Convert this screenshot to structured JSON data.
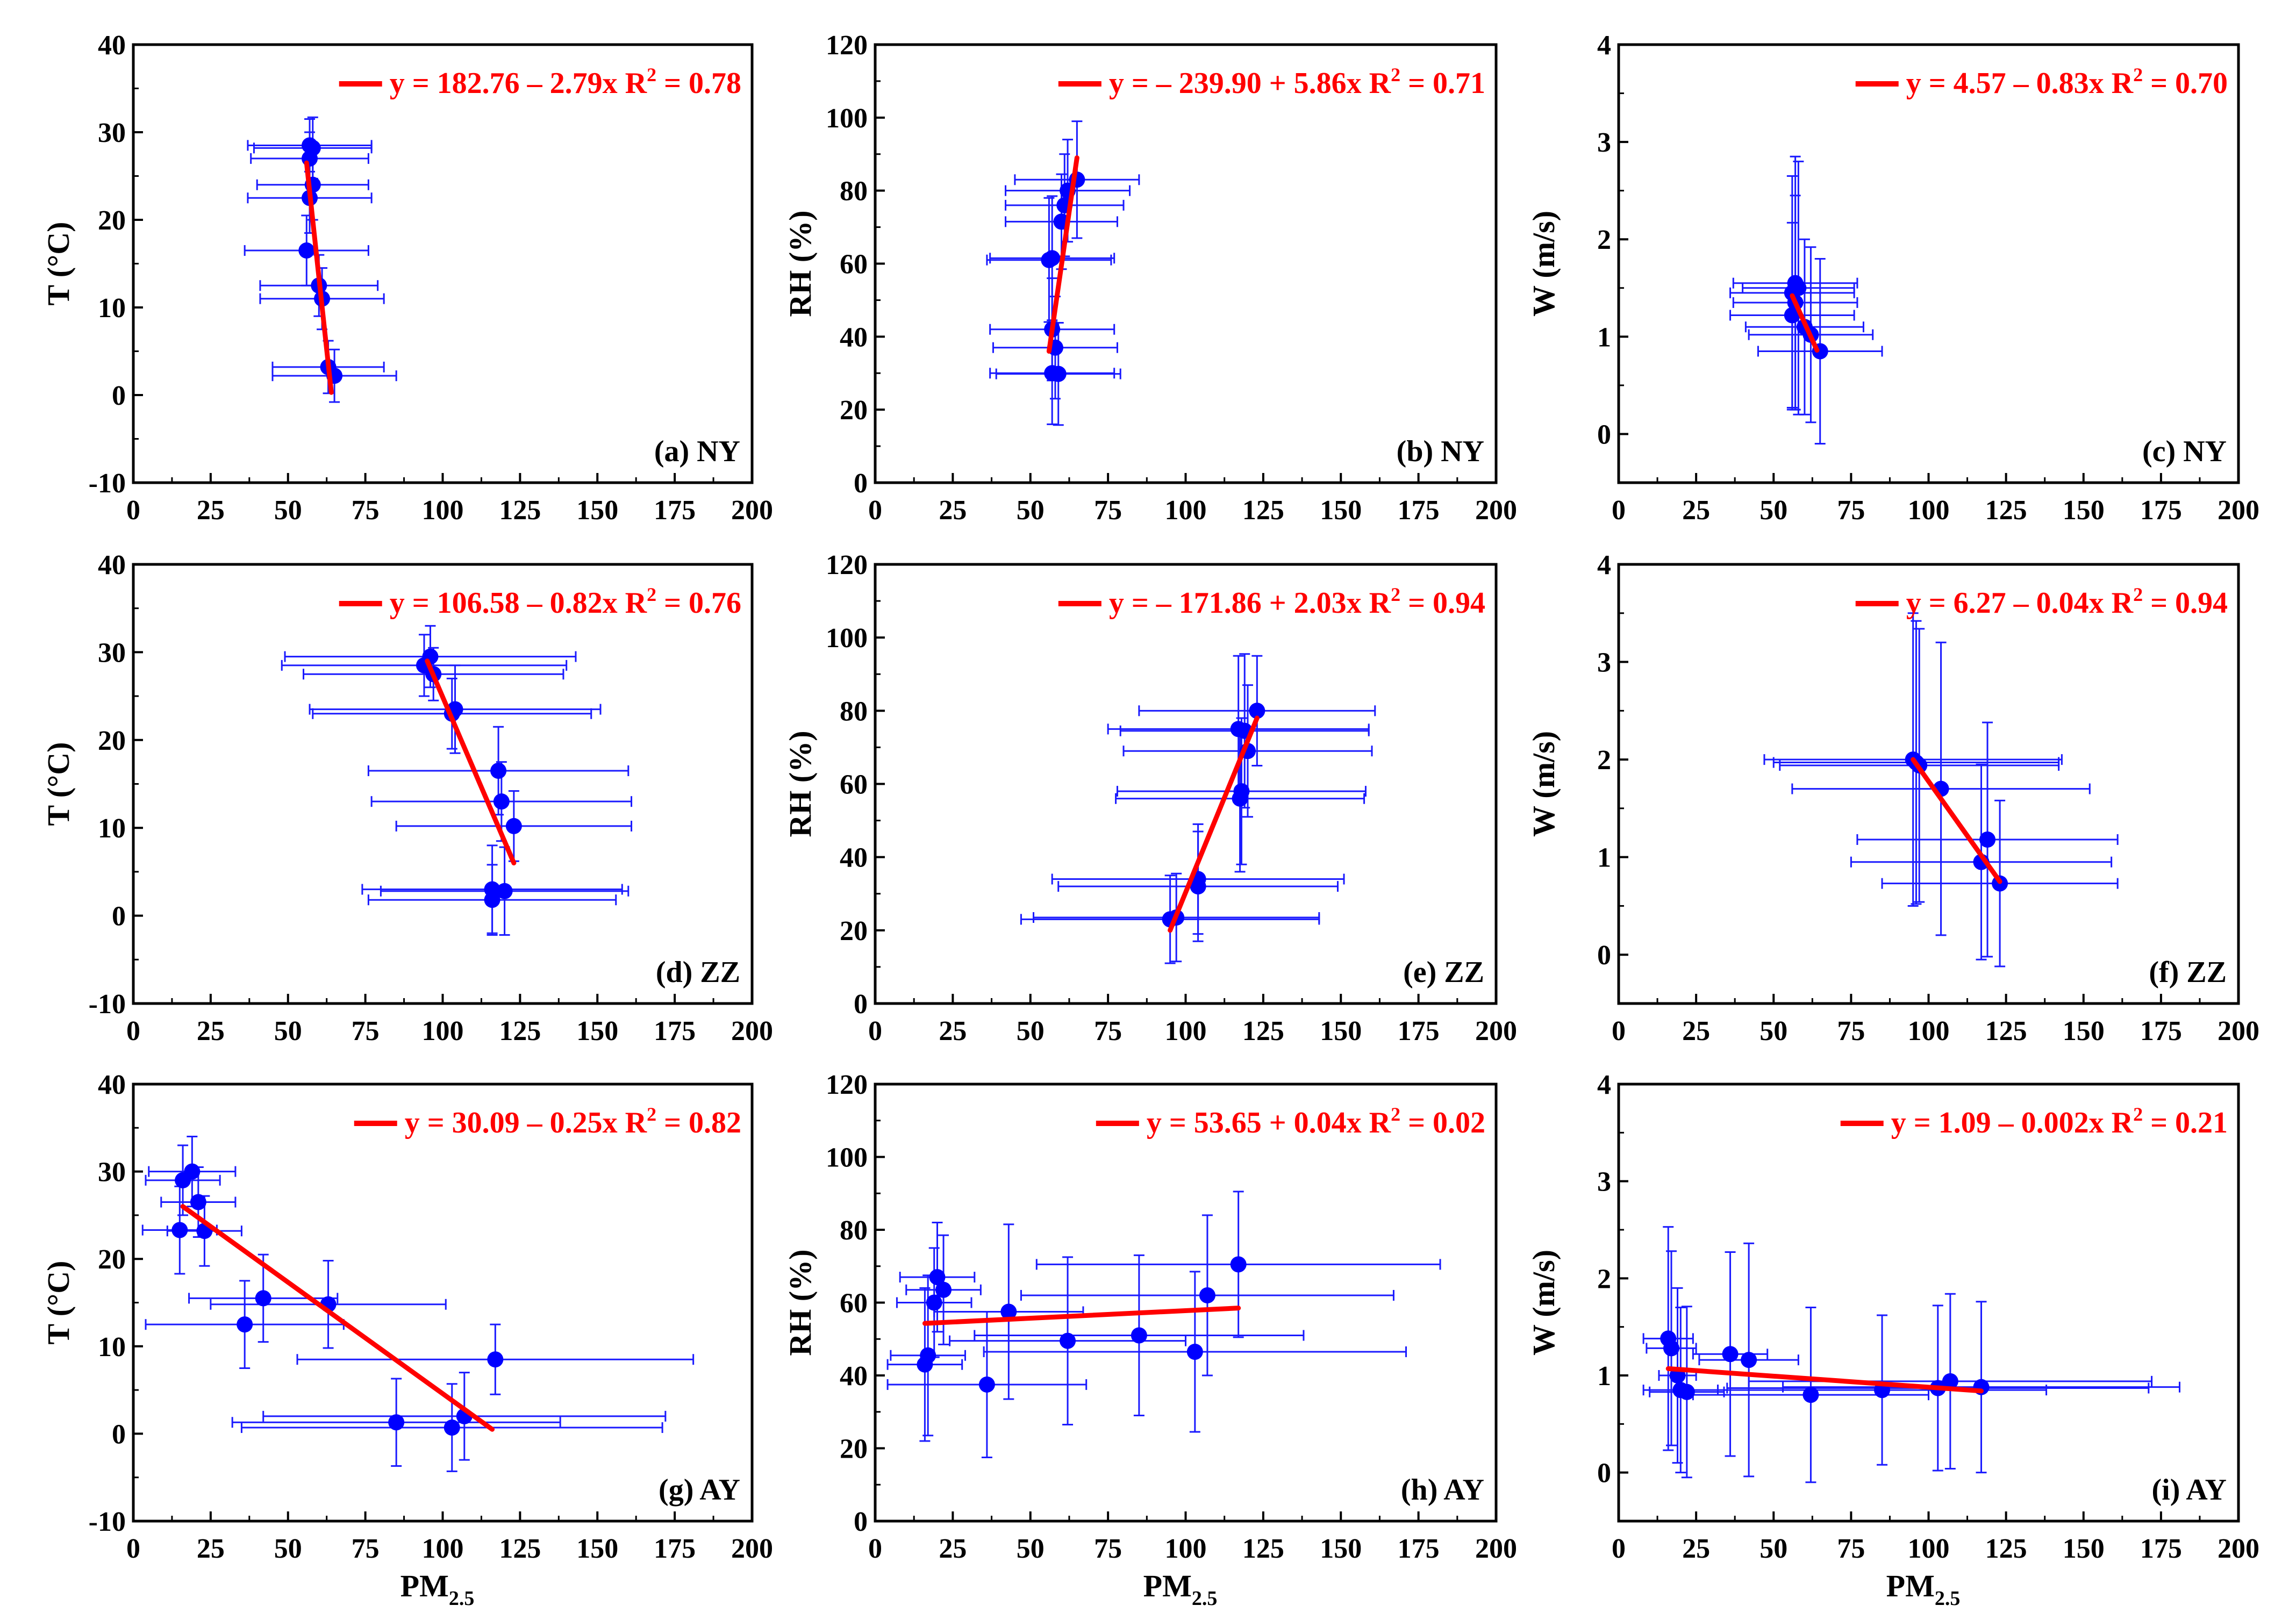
{
  "chart_data": [
    {
      "id": "a",
      "type": "scatter",
      "panel_label": "(a) NY",
      "ylabel": "T (°C)",
      "xlabel": "",
      "xlim": [
        0,
        200
      ],
      "ylim": [
        -10,
        40
      ],
      "xticks": [
        0,
        25,
        50,
        75,
        100,
        125,
        150,
        175,
        200
      ],
      "yticks": [
        -10,
        0,
        10,
        20,
        30,
        40
      ],
      "equation": "y = 182.76 – 2.79x",
      "r2_prefix": "R",
      "r2_value": " = 0.78",
      "fit": {
        "x": [
          56,
          64
        ],
        "y": [
          26.5,
          0.3
        ]
      },
      "points": [
        [
          57,
          28.5,
          20,
          3
        ],
        [
          58,
          28.2,
          19,
          3.5
        ],
        [
          57,
          27,
          19,
          3
        ],
        [
          58,
          24,
          18,
          4
        ],
        [
          57,
          22.5,
          20,
          4
        ],
        [
          56,
          16.5,
          20,
          4
        ],
        [
          60,
          12.5,
          19,
          3.5
        ],
        [
          61,
          11,
          20,
          3.5
        ],
        [
          63,
          3.2,
          18,
          3
        ],
        [
          65,
          2.2,
          20,
          3
        ]
      ]
    },
    {
      "id": "b",
      "type": "scatter",
      "panel_label": "(b) NY",
      "ylabel": "RH (%)",
      "xlabel": "",
      "xlim": [
        0,
        200
      ],
      "ylim": [
        0,
        120
      ],
      "xticks": [
        0,
        25,
        50,
        75,
        100,
        125,
        150,
        175,
        200
      ],
      "yticks": [
        0,
        20,
        40,
        60,
        80,
        100,
        120
      ],
      "equation": "y = – 239.90 + 5.86x",
      "r2_prefix": "R",
      "r2_value": " = 0.71",
      "fit": {
        "x": [
          56,
          65
        ],
        "y": [
          36,
          89
        ]
      },
      "points": [
        [
          65,
          83,
          20,
          16
        ],
        [
          62,
          80,
          20,
          14
        ],
        [
          61,
          76,
          19,
          14
        ],
        [
          60,
          71.5,
          18,
          13
        ],
        [
          57,
          61.5,
          20,
          17
        ],
        [
          56,
          61,
          20,
          17
        ],
        [
          57,
          42,
          20,
          14
        ],
        [
          58,
          37,
          20,
          14
        ],
        [
          57,
          30,
          20,
          14
        ],
        [
          59,
          29.8,
          20,
          14
        ]
      ]
    },
    {
      "id": "c",
      "type": "scatter",
      "panel_label": "(c) NY",
      "ylabel": "W (m/s)",
      "xlabel": "",
      "xlim": [
        0,
        200
      ],
      "ylim": [
        -0.5,
        4
      ],
      "xticks": [
        0,
        25,
        50,
        75,
        100,
        125,
        150,
        175,
        200
      ],
      "yticks": [
        0,
        1,
        2,
        3,
        4
      ],
      "equation": "y = 4.57 – 0.83x",
      "r2_prefix": "R",
      "r2_value": " = 0.70",
      "fit": {
        "x": [
          56,
          64
        ],
        "y": [
          1.42,
          0.86
        ]
      },
      "points": [
        [
          57,
          1.55,
          20,
          1.3
        ],
        [
          58,
          1.5,
          18,
          1.3
        ],
        [
          56,
          1.45,
          20,
          1.2
        ],
        [
          57,
          1.35,
          20,
          1.1
        ],
        [
          56,
          1.22,
          20,
          0.95
        ],
        [
          60,
          1.1,
          19,
          0.9
        ],
        [
          62,
          1.02,
          20,
          0.9
        ],
        [
          65,
          0.85,
          20,
          0.95
        ]
      ]
    },
    {
      "id": "d",
      "type": "scatter",
      "panel_label": "(d) ZZ",
      "ylabel": "T (°C)",
      "xlabel": "",
      "xlim": [
        0,
        200
      ],
      "ylim": [
        -10,
        40
      ],
      "xticks": [
        0,
        25,
        50,
        75,
        100,
        125,
        150,
        175,
        200
      ],
      "yticks": [
        -10,
        0,
        10,
        20,
        30,
        40
      ],
      "equation": "y = 106.58 – 0.82x",
      "r2_prefix": "R",
      "r2_value": " = 0.76",
      "fit": {
        "x": [
          95,
          123
        ],
        "y": [
          29,
          6
        ]
      },
      "points": [
        [
          96,
          29.5,
          47,
          3.5
        ],
        [
          94,
          28.5,
          46,
          3.5
        ],
        [
          97,
          27.5,
          42,
          3
        ],
        [
          104,
          23.5,
          47,
          5
        ],
        [
          103,
          23,
          45,
          4
        ],
        [
          118,
          16.5,
          42,
          5
        ],
        [
          119,
          13,
          42,
          4.5
        ],
        [
          123,
          10.2,
          38,
          4
        ],
        [
          116,
          3,
          42,
          5
        ],
        [
          120,
          2.8,
          40,
          5
        ],
        [
          116,
          1.8,
          40,
          4
        ]
      ]
    },
    {
      "id": "e",
      "type": "scatter",
      "panel_label": "(e) ZZ",
      "ylabel": "RH (%)",
      "xlabel": "",
      "xlim": [
        0,
        200
      ],
      "ylim": [
        0,
        120
      ],
      "xticks": [
        0,
        25,
        50,
        75,
        100,
        125,
        150,
        175,
        200
      ],
      "yticks": [
        0,
        20,
        40,
        60,
        80,
        100,
        120
      ],
      "equation": "y = – 171.86 + 2.03x",
      "r2_prefix": "R",
      "r2_value": " = 0.94",
      "fit": {
        "x": [
          95,
          123
        ],
        "y": [
          20,
          78
        ]
      },
      "points": [
        [
          123,
          80,
          38,
          15
        ],
        [
          117,
          75,
          42,
          20
        ],
        [
          119,
          74.5,
          40,
          21
        ],
        [
          120,
          69,
          40,
          18
        ],
        [
          118,
          58,
          40,
          20
        ],
        [
          117.5,
          56,
          40,
          20
        ],
        [
          104,
          34,
          47,
          15
        ],
        [
          104,
          32,
          45,
          15
        ],
        [
          97,
          23.5,
          46,
          12
        ],
        [
          95,
          23,
          48,
          12
        ]
      ]
    },
    {
      "id": "f",
      "type": "scatter",
      "panel_label": "(f) ZZ",
      "ylabel": "W (m/s)",
      "xlabel": "",
      "xlim": [
        0,
        200
      ],
      "ylim": [
        -0.5,
        4
      ],
      "xticks": [
        0,
        25,
        50,
        75,
        100,
        125,
        150,
        175,
        200
      ],
      "yticks": [
        0,
        1,
        2,
        3,
        4
      ],
      "equation": "y = 6.27 – 0.04x",
      "r2_prefix": "R",
      "r2_value": " = 0.94",
      "fit": {
        "x": [
          95,
          123
        ],
        "y": [
          2.0,
          0.75
        ]
      },
      "points": [
        [
          95,
          2.0,
          48,
          1.5
        ],
        [
          96,
          1.97,
          46,
          1.45
        ],
        [
          97,
          1.94,
          45,
          1.4
        ],
        [
          104,
          1.7,
          48,
          1.5
        ],
        [
          119,
          1.18,
          42,
          1.2
        ],
        [
          117,
          0.95,
          42,
          1.0
        ],
        [
          123,
          0.73,
          38,
          0.85
        ]
      ]
    },
    {
      "id": "g",
      "type": "scatter",
      "panel_label": "(g) AY",
      "ylabel": "T (°C)",
      "xlabel": "PM",
      "xlabel_sub": "2.5",
      "xlim": [
        0,
        200
      ],
      "ylim": [
        -10,
        40
      ],
      "xticks": [
        0,
        25,
        50,
        75,
        100,
        125,
        150,
        175,
        200
      ],
      "yticks": [
        -10,
        0,
        10,
        20,
        30,
        40
      ],
      "equation": "y = 30.09 – 0.25x",
      "r2_prefix": "R",
      "r2_value": " = 0.82",
      "fit": {
        "x": [
          16,
          116
        ],
        "y": [
          26,
          0.5
        ]
      },
      "points": [
        [
          19,
          30,
          14,
          4
        ],
        [
          16,
          29,
          12,
          4
        ],
        [
          21,
          26.5,
          12,
          4
        ],
        [
          23,
          23.2,
          12,
          4
        ],
        [
          15,
          23.3,
          12,
          5
        ],
        [
          42,
          15.5,
          24,
          5
        ],
        [
          63,
          14.8,
          38,
          5
        ],
        [
          36,
          12.5,
          32,
          5
        ],
        [
          117,
          8.5,
          64,
          4
        ],
        [
          85,
          1.3,
          53,
          5
        ],
        [
          107,
          2,
          65,
          5
        ],
        [
          103,
          0.7,
          68,
          5
        ]
      ]
    },
    {
      "id": "h",
      "type": "scatter",
      "panel_label": "(h) AY",
      "ylabel": "RH (%)",
      "xlabel": "PM",
      "xlabel_sub": "2.5",
      "xlim": [
        0,
        200
      ],
      "ylim": [
        0,
        120
      ],
      "xticks": [
        0,
        25,
        50,
        75,
        100,
        125,
        150,
        175,
        200
      ],
      "yticks": [
        0,
        20,
        40,
        60,
        80,
        100,
        120
      ],
      "equation": "y = 53.65 + 0.04x",
      "r2_prefix": "R",
      "r2_value": " = 0.02",
      "fit": {
        "x": [
          16,
          117
        ],
        "y": [
          54.3,
          58.5
        ]
      },
      "points": [
        [
          117,
          70.5,
          65,
          20
        ],
        [
          20,
          67,
          12,
          15
        ],
        [
          22,
          63.5,
          12,
          15
        ],
        [
          19,
          60,
          12,
          15
        ],
        [
          107,
          62,
          60,
          22
        ],
        [
          43,
          57.5,
          24,
          24
        ],
        [
          62,
          49.5,
          38,
          23
        ],
        [
          85,
          51,
          53,
          22
        ],
        [
          103,
          46.5,
          68,
          22
        ],
        [
          36,
          37.5,
          32,
          20
        ],
        [
          17,
          45.5,
          12,
          22
        ],
        [
          16,
          43,
          12,
          21
        ]
      ]
    },
    {
      "id": "i",
      "type": "scatter",
      "panel_label": "(i) AY",
      "ylabel": "W (m/s)",
      "xlabel": "PM",
      "xlabel_sub": "2.5",
      "xlim": [
        0,
        200
      ],
      "ylim": [
        -0.5,
        4
      ],
      "xticks": [
        0,
        25,
        50,
        75,
        100,
        125,
        150,
        175,
        200
      ],
      "yticks": [
        0,
        1,
        2,
        3,
        4
      ],
      "equation": "y = 1.09 – 0.002x",
      "r2_prefix": "R",
      "r2_value": " = 0.21",
      "fit": {
        "x": [
          16,
          117
        ],
        "y": [
          1.07,
          0.84
        ]
      },
      "points": [
        [
          16,
          1.38,
          8,
          1.15
        ],
        [
          17,
          1.28,
          8,
          1.0
        ],
        [
          19,
          1.0,
          6,
          0.9
        ],
        [
          36,
          1.22,
          12,
          1.05
        ],
        [
          42,
          1.16,
          16,
          1.2
        ],
        [
          20,
          0.85,
          12,
          0.85
        ],
        [
          22,
          0.83,
          12,
          0.88
        ],
        [
          62,
          0.8,
          38,
          0.9
        ],
        [
          85,
          0.85,
          53,
          0.77
        ],
        [
          103,
          0.87,
          68,
          0.85
        ],
        [
          107,
          0.94,
          65,
          0.9
        ],
        [
          117,
          0.88,
          64,
          0.88
        ]
      ]
    }
  ],
  "colors": {
    "points": "#0000ff",
    "errorbars": "#1a1aff",
    "fit": "#ff0000",
    "text": "#000000"
  }
}
